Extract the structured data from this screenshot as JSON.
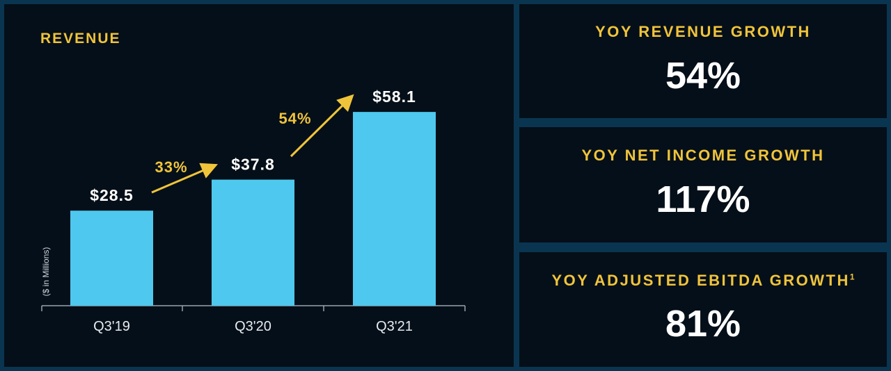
{
  "revenue": {
    "title": "REVENUE"
  },
  "stats": [
    {
      "label": "YOY REVENUE GROWTH",
      "sup": "",
      "value": "54%"
    },
    {
      "label": "YOY NET INCOME GROWTH",
      "sup": "",
      "value": "117%"
    },
    {
      "label": "YOY ADJUSTED EBITDA GROWTH",
      "sup": "1",
      "value": "81%"
    }
  ],
  "colors": {
    "background": "#0a3550",
    "panel": "#050f19",
    "bar": "#4ec8ee",
    "accent": "#f0c43a",
    "text": "#ffffff"
  },
  "chart_data": {
    "type": "bar",
    "title": "REVENUE",
    "ylabel": "($ in Millions)",
    "xlabel": "",
    "categories": [
      "Q3'19",
      "Q3'20",
      "Q3'21"
    ],
    "values": [
      28.5,
      37.8,
      58.1
    ],
    "value_labels": [
      "$28.5",
      "$37.8",
      "$58.1"
    ],
    "growth_labels": [
      "33%",
      "54%"
    ],
    "ylim": [
      0,
      60
    ],
    "grid": false,
    "legend": "none"
  }
}
